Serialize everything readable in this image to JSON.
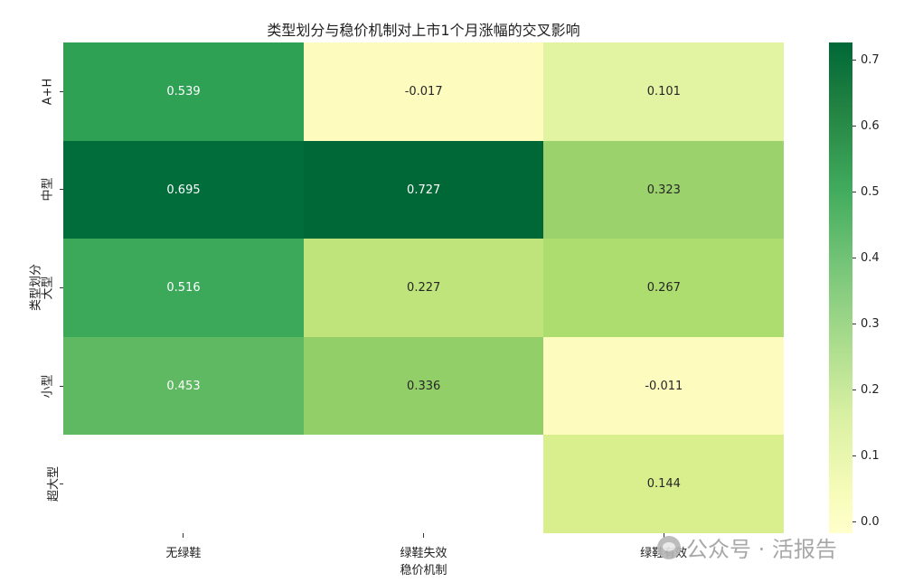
{
  "chart_data": {
    "type": "heatmap",
    "title": "类型划分与稳价机制对上市1个月涨幅的交叉影响",
    "xlabel": "稳价机制",
    "ylabel": "类型划分",
    "x_categories": [
      "无绿鞋",
      "绿鞋失效",
      "绿鞋有效"
    ],
    "y_categories": [
      "A+H",
      "中型",
      "大型",
      "小型",
      "超大型"
    ],
    "values": [
      [
        0.539,
        -0.017,
        0.101
      ],
      [
        0.695,
        0.727,
        0.323
      ],
      [
        0.516,
        0.227,
        0.267
      ],
      [
        0.453,
        0.336,
        -0.011
      ],
      [
        null,
        null,
        0.144
      ]
    ],
    "labels": [
      [
        "0.539",
        "-0.017",
        "0.101"
      ],
      [
        "0.695",
        "0.727",
        "0.323"
      ],
      [
        "0.516",
        "0.227",
        "0.267"
      ],
      [
        "0.453",
        "0.336",
        "-0.011"
      ],
      [
        "",
        "",
        "0.144"
      ]
    ],
    "colormap": "YlGn",
    "vmin": -0.017,
    "vmax": 0.727,
    "colorbar_ticks": [
      "0.0",
      "0.1",
      "0.2",
      "0.3",
      "0.4",
      "0.5",
      "0.6",
      "0.7"
    ],
    "cell_colors": [
      [
        "#2fa155",
        "#fdfcbe",
        "#e2f3a1"
      ],
      [
        "#006d3a",
        "#006837",
        "#9bd26b"
      ],
      [
        "#3ba85a",
        "#c0e47c",
        "#acdd6e"
      ],
      [
        "#5fb962",
        "#92cf68",
        "#fdfcbe"
      ],
      [
        "#ffffff",
        "#ffffff",
        "#d9ef8d"
      ]
    ]
  },
  "watermark": "公众号 · 活报告"
}
